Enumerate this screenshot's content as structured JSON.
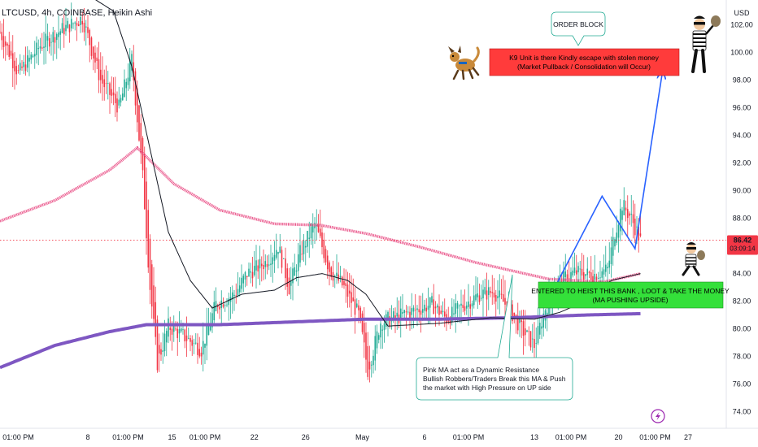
{
  "header": {
    "symbol_line": "LTCUSD, 4h, COINBASE, Heikin Ashi",
    "currency": "USD"
  },
  "price_tag": {
    "price": "86.42",
    "countdown": "03:09:14",
    "value": 86.42,
    "color": "#f23645"
  },
  "colors": {
    "up": "#22ab94",
    "down": "#f23645",
    "pink_ma": "#e94f86",
    "purple_ma": "#7e57c2",
    "black_ma": "#131722",
    "arrow": "#2962ff",
    "red_box": "#ff3b3b",
    "green_box": "#34e03a"
  },
  "chart_data": {
    "type": "candlestick",
    "y_ticks": [
      "102.00",
      "100.00",
      "98.00",
      "96.00",
      "94.00",
      "92.00",
      "90.00",
      "88.00",
      "84.00",
      "82.00",
      "80.00",
      "78.00",
      "76.00",
      "74.00"
    ],
    "y_tick_values": [
      102,
      100,
      98,
      96,
      94,
      92,
      90,
      88,
      84,
      82,
      80,
      78,
      76,
      74
    ],
    "ylim": [
      72.8,
      103.8
    ],
    "x_ticks": [
      "01:00 PM",
      "8",
      "01:00 PM",
      "15",
      "01:00 PM",
      "22",
      "26",
      "May",
      "6",
      "01:00 PM",
      "13",
      "01:00 PM",
      "20",
      "01:00 PM",
      "27"
    ],
    "x_index_range": [
      0,
      360
    ],
    "x_tick_index": [
      10,
      48,
      70,
      94,
      112,
      139,
      167,
      198,
      232,
      256,
      292,
      312,
      338,
      358,
      376
    ],
    "price_segments": [
      [
        0,
        101.5
      ],
      [
        10,
        98.5
      ],
      [
        22,
        100.5
      ],
      [
        32,
        101.5
      ],
      [
        45,
        102.5
      ],
      [
        55,
        98
      ],
      [
        65,
        96
      ],
      [
        72,
        99.5
      ],
      [
        78,
        91
      ],
      [
        82,
        83
      ],
      [
        86,
        77.5
      ],
      [
        92,
        80.2
      ],
      [
        100,
        79.5
      ],
      [
        110,
        78.5
      ],
      [
        118,
        81.8
      ],
      [
        128,
        82.5
      ],
      [
        135,
        84
      ],
      [
        145,
        84.8
      ],
      [
        152,
        86
      ],
      [
        158,
        83
      ],
      [
        164,
        85.5
      ],
      [
        172,
        87.6
      ],
      [
        180,
        84.3
      ],
      [
        188,
        83
      ],
      [
        196,
        81
      ],
      [
        201,
        77
      ],
      [
        208,
        80.5
      ],
      [
        216,
        80.8
      ],
      [
        226,
        81.3
      ],
      [
        236,
        81.8
      ],
      [
        244,
        80.7
      ],
      [
        252,
        81.6
      ],
      [
        262,
        82.5
      ],
      [
        270,
        82.7
      ],
      [
        278,
        81.5
      ],
      [
        286,
        79.8
      ],
      [
        292,
        78.8
      ],
      [
        298,
        81.5
      ],
      [
        306,
        83.5
      ],
      [
        314,
        84.1
      ],
      [
        324,
        83.9
      ],
      [
        332,
        84.3
      ],
      [
        336,
        87
      ],
      [
        340,
        89
      ],
      [
        345,
        88
      ],
      [
        350,
        86.4
      ]
    ],
    "series": [
      {
        "name": "",
        "points": [
          [
            0,
            87.8
          ],
          [
            30,
            89.3
          ],
          [
            60,
            91.5
          ],
          [
            75,
            93.1
          ],
          [
            95,
            90.5
          ],
          [
            120,
            88.6
          ],
          [
            150,
            87.6
          ],
          [
            175,
            87.5
          ],
          [
            200,
            86.9
          ],
          [
            230,
            85.9
          ],
          [
            260,
            84.8
          ],
          [
            300,
            83.6
          ],
          [
            330,
            83.4
          ],
          [
            350,
            84
          ]
        ]
      },
      {
        "name": "",
        "points": [
          [
            0,
            77.2
          ],
          [
            30,
            78.8
          ],
          [
            60,
            79.8
          ],
          [
            80,
            80.3
          ],
          [
            120,
            80.3
          ],
          [
            160,
            80.5
          ],
          [
            200,
            80.7
          ],
          [
            240,
            80.7
          ],
          [
            280,
            80.8
          ],
          [
            320,
            81
          ],
          [
            350,
            81.1
          ]
        ]
      },
      {
        "name": "",
        "points": [
          [
            50,
            104
          ],
          [
            62,
            103
          ],
          [
            72,
            99
          ],
          [
            82,
            93
          ],
          [
            92,
            87
          ],
          [
            104,
            83.5
          ],
          [
            116,
            81.5
          ],
          [
            132,
            82.5
          ],
          [
            150,
            82.8
          ],
          [
            162,
            83.7
          ],
          [
            176,
            84
          ],
          [
            190,
            83.5
          ],
          [
            200,
            82.5
          ],
          [
            212,
            80.2
          ],
          [
            240,
            80.4
          ],
          [
            268,
            80.8
          ],
          [
            292,
            80.7
          ],
          [
            306,
            81.2
          ],
          [
            320,
            82
          ],
          [
            334,
            83.5
          ],
          [
            350,
            84
          ]
        ]
      }
    ],
    "arrow_points": [
      [
        302,
        82.7
      ],
      [
        329,
        89.6
      ],
      [
        347,
        85.8
      ],
      [
        362,
        98.6
      ]
    ],
    "annotations": {
      "order_block": "ORDER BLOCK",
      "red_box_line1": "K9 Unit is there Kindly escape with stolen money",
      "red_box_line2": "(Market Pullback / Consolidation will Occur)",
      "green_box_line1": "ENTERED TO HEIST THIS BANK , LOOT & TAKE THE MONEY",
      "green_box_line2": "(MA PUSHING UPSIDE)",
      "note_line1": "Pink MA act as a Dynamic Resistance",
      "note_line2": "Bullish Robbers/Traders Break this MA & Push",
      "note_line3": "the market with High Pressure on UP side"
    }
  }
}
